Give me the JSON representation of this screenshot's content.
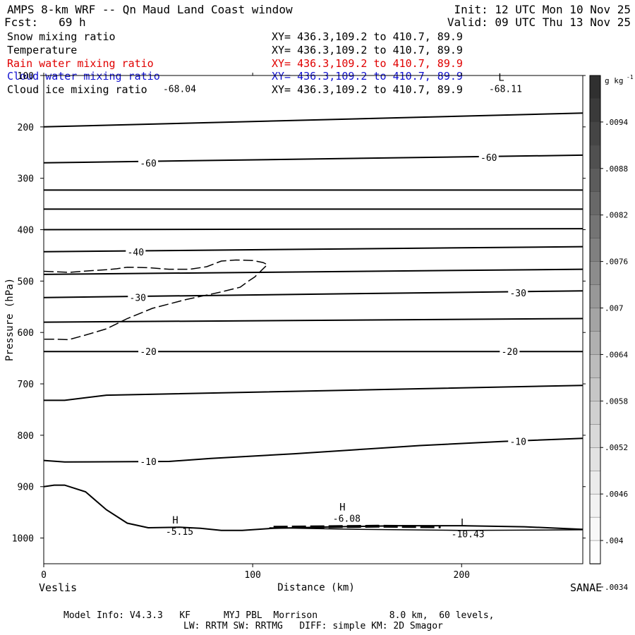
{
  "header": {
    "title": "AMPS 8-km WRF -- Qn Maud Land Coast window",
    "fcst": "Fcst:   69 h",
    "init": "Init: 12 UTC Mon 10 Nov 25",
    "valid": "Valid: 09 UTC Thu 13 Nov 25"
  },
  "legend": [
    {
      "label": "Snow mixing ratio",
      "xy": "XY= 436.3,109.2 to 410.7, 89.9",
      "color": "#000000"
    },
    {
      "label": "Temperature",
      "xy": "XY= 436.3,109.2 to 410.7, 89.9",
      "color": "#000000"
    },
    {
      "label": "Rain water mixing ratio",
      "xy": "XY= 436.3,109.2 to 410.7, 89.9",
      "color": "#e00000"
    },
    {
      "label": "Cloud water mixing ratio",
      "xy": "XY= 436.3,109.2 to 410.7, 89.9",
      "color": "#1010d0"
    },
    {
      "label": "Cloud ice mixing ratio",
      "xy": "XY= 436.3,109.2 to 410.7, 89.9",
      "color": "#000000"
    }
  ],
  "footer": {
    "line1": "Model Info: V4.3.3   KF      MYJ PBL  Morrison             8.0 km,  60 levels,",
    "line2": "LW: RRTM SW: RRTMG   DIFF: simple KM: 2D Smagor"
  },
  "endpoints": {
    "left": "Veslis",
    "right": "SANAE"
  },
  "chart_data": {
    "type": "line",
    "title": "AMPS 8-km WRF -- Qn Maud Land Coast window",
    "xlabel": "Distance (km)",
    "ylabel": "Pressure (hPa)",
    "xlim": [
      0,
      258
    ],
    "ylim": [
      1050,
      100
    ],
    "x_ticks": [
      0,
      100,
      200
    ],
    "y_ticks": [
      100,
      200,
      300,
      400,
      500,
      600,
      700,
      800,
      900,
      1000
    ],
    "colorbar": {
      "unit": "g kg",
      "unit_exp": "-1",
      "tick_labels": [
        ".0094",
        ".0088",
        ".0082",
        ".0076",
        ".007",
        ".0064",
        ".0058",
        ".0052",
        ".0046",
        ".004",
        ".0034"
      ],
      "grays": [
        "#303030",
        "#3a3a3a",
        "#454545",
        "#505050",
        "#5c5c5c",
        "#686868",
        "#747474",
        "#808080",
        "#8c8c8c",
        "#989898",
        "#a4a4a4",
        "#b0b0b0",
        "#bcbcbc",
        "#c6c6c6",
        "#d0d0d0",
        "#d9d9d9",
        "#e2e2e2",
        "#ebebeb",
        "#f2f2f2",
        "#f8f8f8",
        "#fdfdfd"
      ]
    },
    "isotherms": [
      {
        "points": [
          [
            0,
            200
          ],
          [
            258,
            173
          ]
        ]
      },
      {
        "points": [
          [
            0,
            270
          ],
          [
            258,
            255
          ]
        ]
      },
      {
        "points": [
          [
            0,
            323
          ],
          [
            258,
            323
          ]
        ]
      },
      {
        "points": [
          [
            0,
            360
          ],
          [
            258,
            360
          ]
        ]
      },
      {
        "points": [
          [
            0,
            400
          ],
          [
            258,
            398
          ]
        ]
      },
      {
        "points": [
          [
            0,
            443
          ],
          [
            258,
            433
          ]
        ]
      },
      {
        "points": [
          [
            0,
            487
          ],
          [
            258,
            477
          ]
        ]
      },
      {
        "points": [
          [
            0,
            532
          ],
          [
            258,
            519
          ]
        ]
      },
      {
        "points": [
          [
            0,
            580
          ],
          [
            258,
            573
          ]
        ]
      },
      {
        "points": [
          [
            0,
            637
          ],
          [
            258,
            637
          ]
        ]
      },
      {
        "points": [
          [
            0,
            732
          ],
          [
            10,
            732
          ],
          [
            30,
            722
          ],
          [
            258,
            703
          ]
        ]
      },
      {
        "points": [
          [
            0,
            849
          ],
          [
            10,
            852
          ],
          [
            60,
            851
          ],
          [
            80,
            845
          ],
          [
            120,
            836
          ],
          [
            180,
            820
          ],
          [
            220,
            812
          ],
          [
            258,
            806
          ]
        ]
      }
    ],
    "contour_labels": [
      {
        "x": 50,
        "y": 270,
        "text": "-60"
      },
      {
        "x": 213,
        "y": 259,
        "text": "-60"
      },
      {
        "x": 44,
        "y": 443,
        "text": "-40"
      },
      {
        "x": 45,
        "y": 532,
        "text": "-30"
      },
      {
        "x": 227,
        "y": 523,
        "text": "-30"
      },
      {
        "x": 50,
        "y": 637,
        "text": "-20"
      },
      {
        "x": 223,
        "y": 637,
        "text": "-20"
      },
      {
        "x": 50,
        "y": 851,
        "text": "-10"
      },
      {
        "x": 227,
        "y": 812,
        "text": "-10"
      }
    ],
    "extrema": [
      {
        "x": 65,
        "y": 977,
        "mark": "H",
        "value": "-5.15"
      },
      {
        "x": 145,
        "y": 952,
        "mark": "H",
        "value": "-6.08"
      },
      {
        "x": 203,
        "y": 982,
        "mark": "L",
        "value": "-10.43"
      },
      {
        "x": 65,
        "y": 116,
        "mark": "",
        "value": "-68.04"
      },
      {
        "x": 221,
        "y": 116,
        "mark": "L",
        "value": "-68.11"
      }
    ],
    "terrain": [
      [
        0,
        900
      ],
      [
        5,
        897
      ],
      [
        10,
        897
      ],
      [
        20,
        910
      ],
      [
        30,
        945
      ],
      [
        40,
        971
      ],
      [
        50,
        980
      ],
      [
        65,
        979
      ],
      [
        75,
        981
      ],
      [
        85,
        985
      ],
      [
        95,
        985
      ],
      [
        110,
        981
      ],
      [
        140,
        978
      ],
      [
        170,
        976
      ],
      [
        200,
        976
      ],
      [
        230,
        978
      ],
      [
        258,
        983
      ]
    ],
    "low_level_contour": [
      [
        108,
        980
      ],
      [
        150,
        983
      ],
      [
        200,
        985
      ],
      [
        258,
        984
      ]
    ],
    "ice_contour": [
      [
        0,
        481
      ],
      [
        12,
        483
      ],
      [
        22,
        480
      ],
      [
        30,
        478
      ],
      [
        35,
        476
      ],
      [
        40,
        473
      ],
      [
        50,
        474
      ],
      [
        60,
        477
      ],
      [
        70,
        477
      ],
      [
        78,
        472
      ],
      [
        85,
        461
      ],
      [
        92,
        459
      ],
      [
        100,
        460
      ],
      [
        105,
        464
      ],
      [
        107,
        468
      ],
      [
        104,
        480
      ],
      [
        101,
        492
      ],
      [
        98,
        500
      ],
      [
        94,
        512
      ],
      [
        84,
        522
      ],
      [
        68,
        536
      ],
      [
        52,
        553
      ],
      [
        40,
        573
      ],
      [
        30,
        593
      ],
      [
        20,
        605
      ],
      [
        12,
        614
      ],
      [
        5,
        613
      ],
      [
        0,
        613
      ]
    ],
    "snow_band": [
      [
        110,
        979
      ],
      [
        160,
        977
      ],
      [
        190,
        978
      ]
    ]
  }
}
